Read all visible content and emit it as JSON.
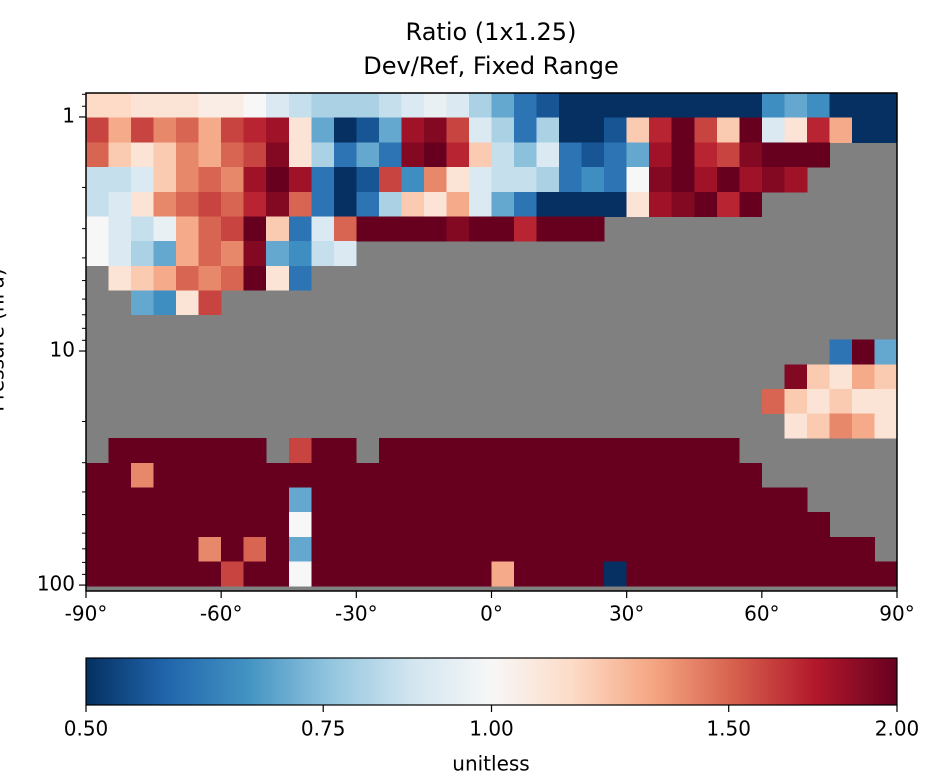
{
  "chart_data": {
    "type": "heatmap",
    "title": "Ratio (1x1.25)",
    "subtitle": "Dev/Ref, Fixed Range",
    "ylabel": "Pressure (hPa)",
    "x": [
      -87.5,
      -82.5,
      -77.5,
      -72.5,
      -67.5,
      -62.5,
      -57.5,
      -52.5,
      -47.5,
      -42.5,
      -37.5,
      -32.5,
      -27.5,
      -22.5,
      -17.5,
      -12.5,
      -7.5,
      -2.5,
      2.5,
      7.5,
      12.5,
      17.5,
      22.5,
      27.5,
      32.5,
      37.5,
      42.5,
      47.5,
      52.5,
      57.5,
      62.5,
      67.5,
      72.5,
      77.5,
      82.5,
      87.5
    ],
    "y": [
      0.89,
      1.14,
      1.45,
      1.85,
      2.36,
      3.0,
      3.83,
      4.88,
      6.2,
      7.9,
      10.1,
      12.9,
      16.4,
      20.9,
      26.6,
      33.9,
      43.2,
      55.1,
      70.2,
      89.4
    ],
    "values": [
      [
        1.15,
        1.15,
        1.1,
        1.1,
        1.1,
        1.05,
        1.05,
        1.0,
        0.9,
        0.85,
        0.8,
        0.8,
        0.8,
        0.85,
        0.9,
        0.95,
        0.9,
        0.8,
        0.7,
        0.6,
        0.55,
        0.5,
        0.5,
        0.5,
        0.5,
        0.5,
        0.5,
        0.5,
        0.5,
        0.5,
        0.65,
        0.7,
        0.65,
        0.5,
        0.5,
        0.5
      ],
      [
        1.6,
        1.3,
        1.6,
        1.4,
        1.5,
        1.3,
        1.6,
        1.7,
        1.8,
        1.1,
        0.7,
        0.5,
        0.55,
        0.7,
        1.8,
        1.9,
        1.6,
        0.9,
        0.8,
        0.6,
        0.8,
        0.5,
        0.5,
        0.55,
        1.2,
        1.7,
        2.0,
        1.6,
        1.2,
        2.0,
        0.9,
        1.1,
        1.7,
        1.3,
        0.5,
        0.5
      ],
      [
        1.5,
        1.2,
        1.1,
        1.2,
        1.4,
        1.3,
        1.5,
        1.6,
        1.9,
        1.1,
        0.8,
        0.6,
        0.7,
        0.6,
        1.9,
        2.0,
        1.7,
        1.2,
        0.85,
        0.75,
        0.9,
        0.6,
        0.55,
        0.6,
        0.7,
        1.8,
        2.0,
        1.7,
        1.6,
        1.9,
        2.0,
        2.0,
        2.0,
        null,
        null,
        null
      ],
      [
        0.85,
        0.85,
        0.9,
        1.2,
        1.4,
        1.5,
        1.4,
        1.8,
        2.0,
        1.8,
        0.6,
        0.5,
        0.55,
        1.6,
        0.65,
        1.4,
        1.1,
        0.9,
        0.85,
        0.85,
        0.8,
        0.6,
        0.65,
        0.6,
        1.0,
        1.9,
        2.0,
        1.8,
        2.0,
        1.8,
        1.9,
        1.8,
        null,
        null,
        null,
        null
      ],
      [
        0.85,
        0.9,
        1.1,
        1.4,
        1.5,
        1.6,
        1.5,
        1.7,
        1.9,
        1.5,
        0.6,
        0.5,
        0.6,
        0.8,
        1.2,
        1.1,
        1.3,
        0.9,
        0.7,
        0.6,
        0.5,
        0.5,
        0.5,
        0.5,
        1.1,
        1.8,
        1.9,
        2.0,
        1.7,
        2.0,
        null,
        null,
        null,
        null,
        null,
        null
      ],
      [
        1.0,
        0.9,
        0.85,
        0.95,
        1.3,
        1.5,
        1.6,
        2.0,
        1.2,
        0.6,
        0.9,
        1.5,
        2.0,
        2.0,
        2.0,
        2.0,
        1.9,
        2.0,
        2.0,
        1.7,
        2.0,
        2.0,
        2.0,
        null,
        null,
        null,
        null,
        null,
        null,
        null,
        null,
        null,
        null,
        null,
        null,
        null
      ],
      [
        1.0,
        0.9,
        0.8,
        0.7,
        1.3,
        1.5,
        1.4,
        1.9,
        0.7,
        0.65,
        0.85,
        0.9,
        null,
        null,
        null,
        null,
        null,
        null,
        null,
        null,
        null,
        null,
        null,
        null,
        null,
        null,
        null,
        null,
        null,
        null,
        null,
        null,
        null,
        null,
        null,
        null
      ],
      [
        null,
        1.1,
        1.2,
        1.3,
        1.5,
        1.4,
        1.5,
        2.0,
        1.1,
        0.6,
        null,
        null,
        null,
        null,
        null,
        null,
        null,
        null,
        null,
        null,
        null,
        null,
        null,
        null,
        null,
        null,
        null,
        null,
        null,
        null,
        null,
        null,
        null,
        null,
        null,
        null
      ],
      [
        null,
        null,
        0.7,
        0.65,
        1.1,
        1.6,
        null,
        null,
        null,
        null,
        null,
        null,
        null,
        null,
        null,
        null,
        null,
        null,
        null,
        null,
        null,
        null,
        null,
        null,
        null,
        null,
        null,
        null,
        null,
        null,
        null,
        null,
        null,
        null,
        null,
        null
      ],
      [
        null,
        null,
        null,
        null,
        null,
        null,
        null,
        null,
        null,
        null,
        null,
        null,
        null,
        null,
        null,
        null,
        null,
        null,
        null,
        null,
        null,
        null,
        null,
        null,
        null,
        null,
        null,
        null,
        null,
        null,
        null,
        null,
        null,
        null,
        null,
        null
      ],
      [
        null,
        null,
        null,
        null,
        null,
        null,
        null,
        null,
        null,
        null,
        null,
        null,
        null,
        null,
        null,
        null,
        null,
        null,
        null,
        null,
        null,
        null,
        null,
        null,
        null,
        null,
        null,
        null,
        null,
        null,
        null,
        null,
        null,
        0.6,
        2.0,
        0.7
      ],
      [
        null,
        null,
        null,
        null,
        null,
        null,
        null,
        null,
        null,
        null,
        null,
        null,
        null,
        null,
        null,
        null,
        null,
        null,
        null,
        null,
        null,
        null,
        null,
        null,
        null,
        null,
        null,
        null,
        null,
        null,
        null,
        1.9,
        1.2,
        1.1,
        1.3,
        1.2
      ],
      [
        null,
        null,
        null,
        null,
        null,
        null,
        null,
        null,
        null,
        null,
        null,
        null,
        null,
        null,
        null,
        null,
        null,
        null,
        null,
        null,
        null,
        null,
        null,
        null,
        null,
        null,
        null,
        null,
        null,
        null,
        1.5,
        1.2,
        1.1,
        1.2,
        1.1,
        1.1
      ],
      [
        null,
        null,
        null,
        null,
        null,
        null,
        null,
        null,
        null,
        null,
        null,
        null,
        null,
        null,
        null,
        null,
        null,
        null,
        null,
        null,
        null,
        null,
        null,
        null,
        null,
        null,
        null,
        null,
        null,
        null,
        null,
        1.1,
        1.2,
        1.4,
        1.3,
        1.1
      ],
      [
        null,
        2.0,
        2.0,
        2.0,
        2.0,
        2.0,
        2.0,
        2.0,
        null,
        1.6,
        2.0,
        2.0,
        null,
        2.0,
        2.0,
        2.0,
        2.0,
        2.0,
        2.0,
        2.0,
        2.0,
        2.0,
        2.0,
        2.0,
        2.0,
        2.0,
        2.0,
        2.0,
        2.0,
        null,
        null,
        null,
        null,
        null,
        null,
        null
      ],
      [
        2.0,
        2.0,
        1.4,
        2.0,
        2.0,
        2.0,
        2.0,
        2.0,
        2.0,
        2.0,
        2.0,
        2.0,
        2.0,
        2.0,
        2.0,
        2.0,
        2.0,
        2.0,
        2.0,
        2.0,
        2.0,
        2.0,
        2.0,
        2.0,
        2.0,
        2.0,
        2.0,
        2.0,
        2.0,
        2.0,
        null,
        null,
        null,
        null,
        null,
        null
      ],
      [
        2.0,
        2.0,
        2.0,
        2.0,
        2.0,
        2.0,
        2.0,
        2.0,
        2.0,
        0.7,
        2.0,
        2.0,
        2.0,
        2.0,
        2.0,
        2.0,
        2.0,
        2.0,
        2.0,
        2.0,
        2.0,
        2.0,
        2.0,
        2.0,
        2.0,
        2.0,
        2.0,
        2.0,
        2.0,
        2.0,
        2.0,
        2.0,
        null,
        null,
        null,
        null
      ],
      [
        2.0,
        2.0,
        2.0,
        2.0,
        2.0,
        2.0,
        2.0,
        2.0,
        2.0,
        1.0,
        2.0,
        2.0,
        2.0,
        2.0,
        2.0,
        2.0,
        2.0,
        2.0,
        2.0,
        2.0,
        2.0,
        2.0,
        2.0,
        2.0,
        2.0,
        2.0,
        2.0,
        2.0,
        2.0,
        2.0,
        2.0,
        2.0,
        2.0,
        null,
        null,
        null
      ],
      [
        2.0,
        2.0,
        2.0,
        2.0,
        2.0,
        1.4,
        2.0,
        1.5,
        2.0,
        0.7,
        2.0,
        2.0,
        2.0,
        2.0,
        2.0,
        2.0,
        2.0,
        2.0,
        2.0,
        2.0,
        2.0,
        2.0,
        2.0,
        2.0,
        2.0,
        2.0,
        2.0,
        2.0,
        2.0,
        2.0,
        2.0,
        2.0,
        2.0,
        2.0,
        2.0,
        null
      ],
      [
        2.0,
        2.0,
        2.0,
        2.0,
        2.0,
        2.0,
        1.6,
        2.0,
        2.0,
        1.0,
        2.0,
        2.0,
        2.0,
        2.0,
        2.0,
        2.0,
        2.0,
        2.0,
        1.3,
        2.0,
        2.0,
        2.0,
        2.0,
        0.5,
        2.0,
        2.0,
        2.0,
        2.0,
        2.0,
        2.0,
        2.0,
        2.0,
        2.0,
        2.0,
        2.0,
        2.0
      ]
    ],
    "xlim": [
      -90,
      90
    ],
    "xticks": [
      {
        "value": -90,
        "label": "-90°"
      },
      {
        "value": -60,
        "label": "-60°"
      },
      {
        "value": -30,
        "label": "-30°"
      },
      {
        "value": 0,
        "label": "0°"
      },
      {
        "value": 30,
        "label": "30°"
      },
      {
        "value": 60,
        "label": "60°"
      },
      {
        "value": 90,
        "label": "90°"
      }
    ],
    "ylim": [
      106,
      0.79
    ],
    "yscale": "log",
    "yticks": [
      1,
      10,
      100
    ],
    "yminorticks": [
      0.8,
      0.9,
      2,
      3,
      4,
      5,
      6,
      7,
      8,
      9,
      20,
      30,
      40,
      50,
      60,
      70,
      80,
      90
    ],
    "missing_color": "#808080",
    "colormap": [
      "#053061",
      "#2166ac",
      "#4393c3",
      "#92c5de",
      "#d1e5f0",
      "#f7f7f7",
      "#fddbc7",
      "#f4a582",
      "#d6604d",
      "#b2182b",
      "#67001f"
    ],
    "colorbar": {
      "label": "unitless",
      "lim": [
        0.5,
        2
      ],
      "scale": "log",
      "ticks": [
        {
          "value": 0.5,
          "label": "0.50"
        },
        {
          "value": 0.75,
          "label": "0.75"
        },
        {
          "value": 1.0,
          "label": "1.00"
        },
        {
          "value": 1.5,
          "label": "1.50"
        },
        {
          "value": 2.0,
          "label": "2.00"
        }
      ]
    }
  }
}
